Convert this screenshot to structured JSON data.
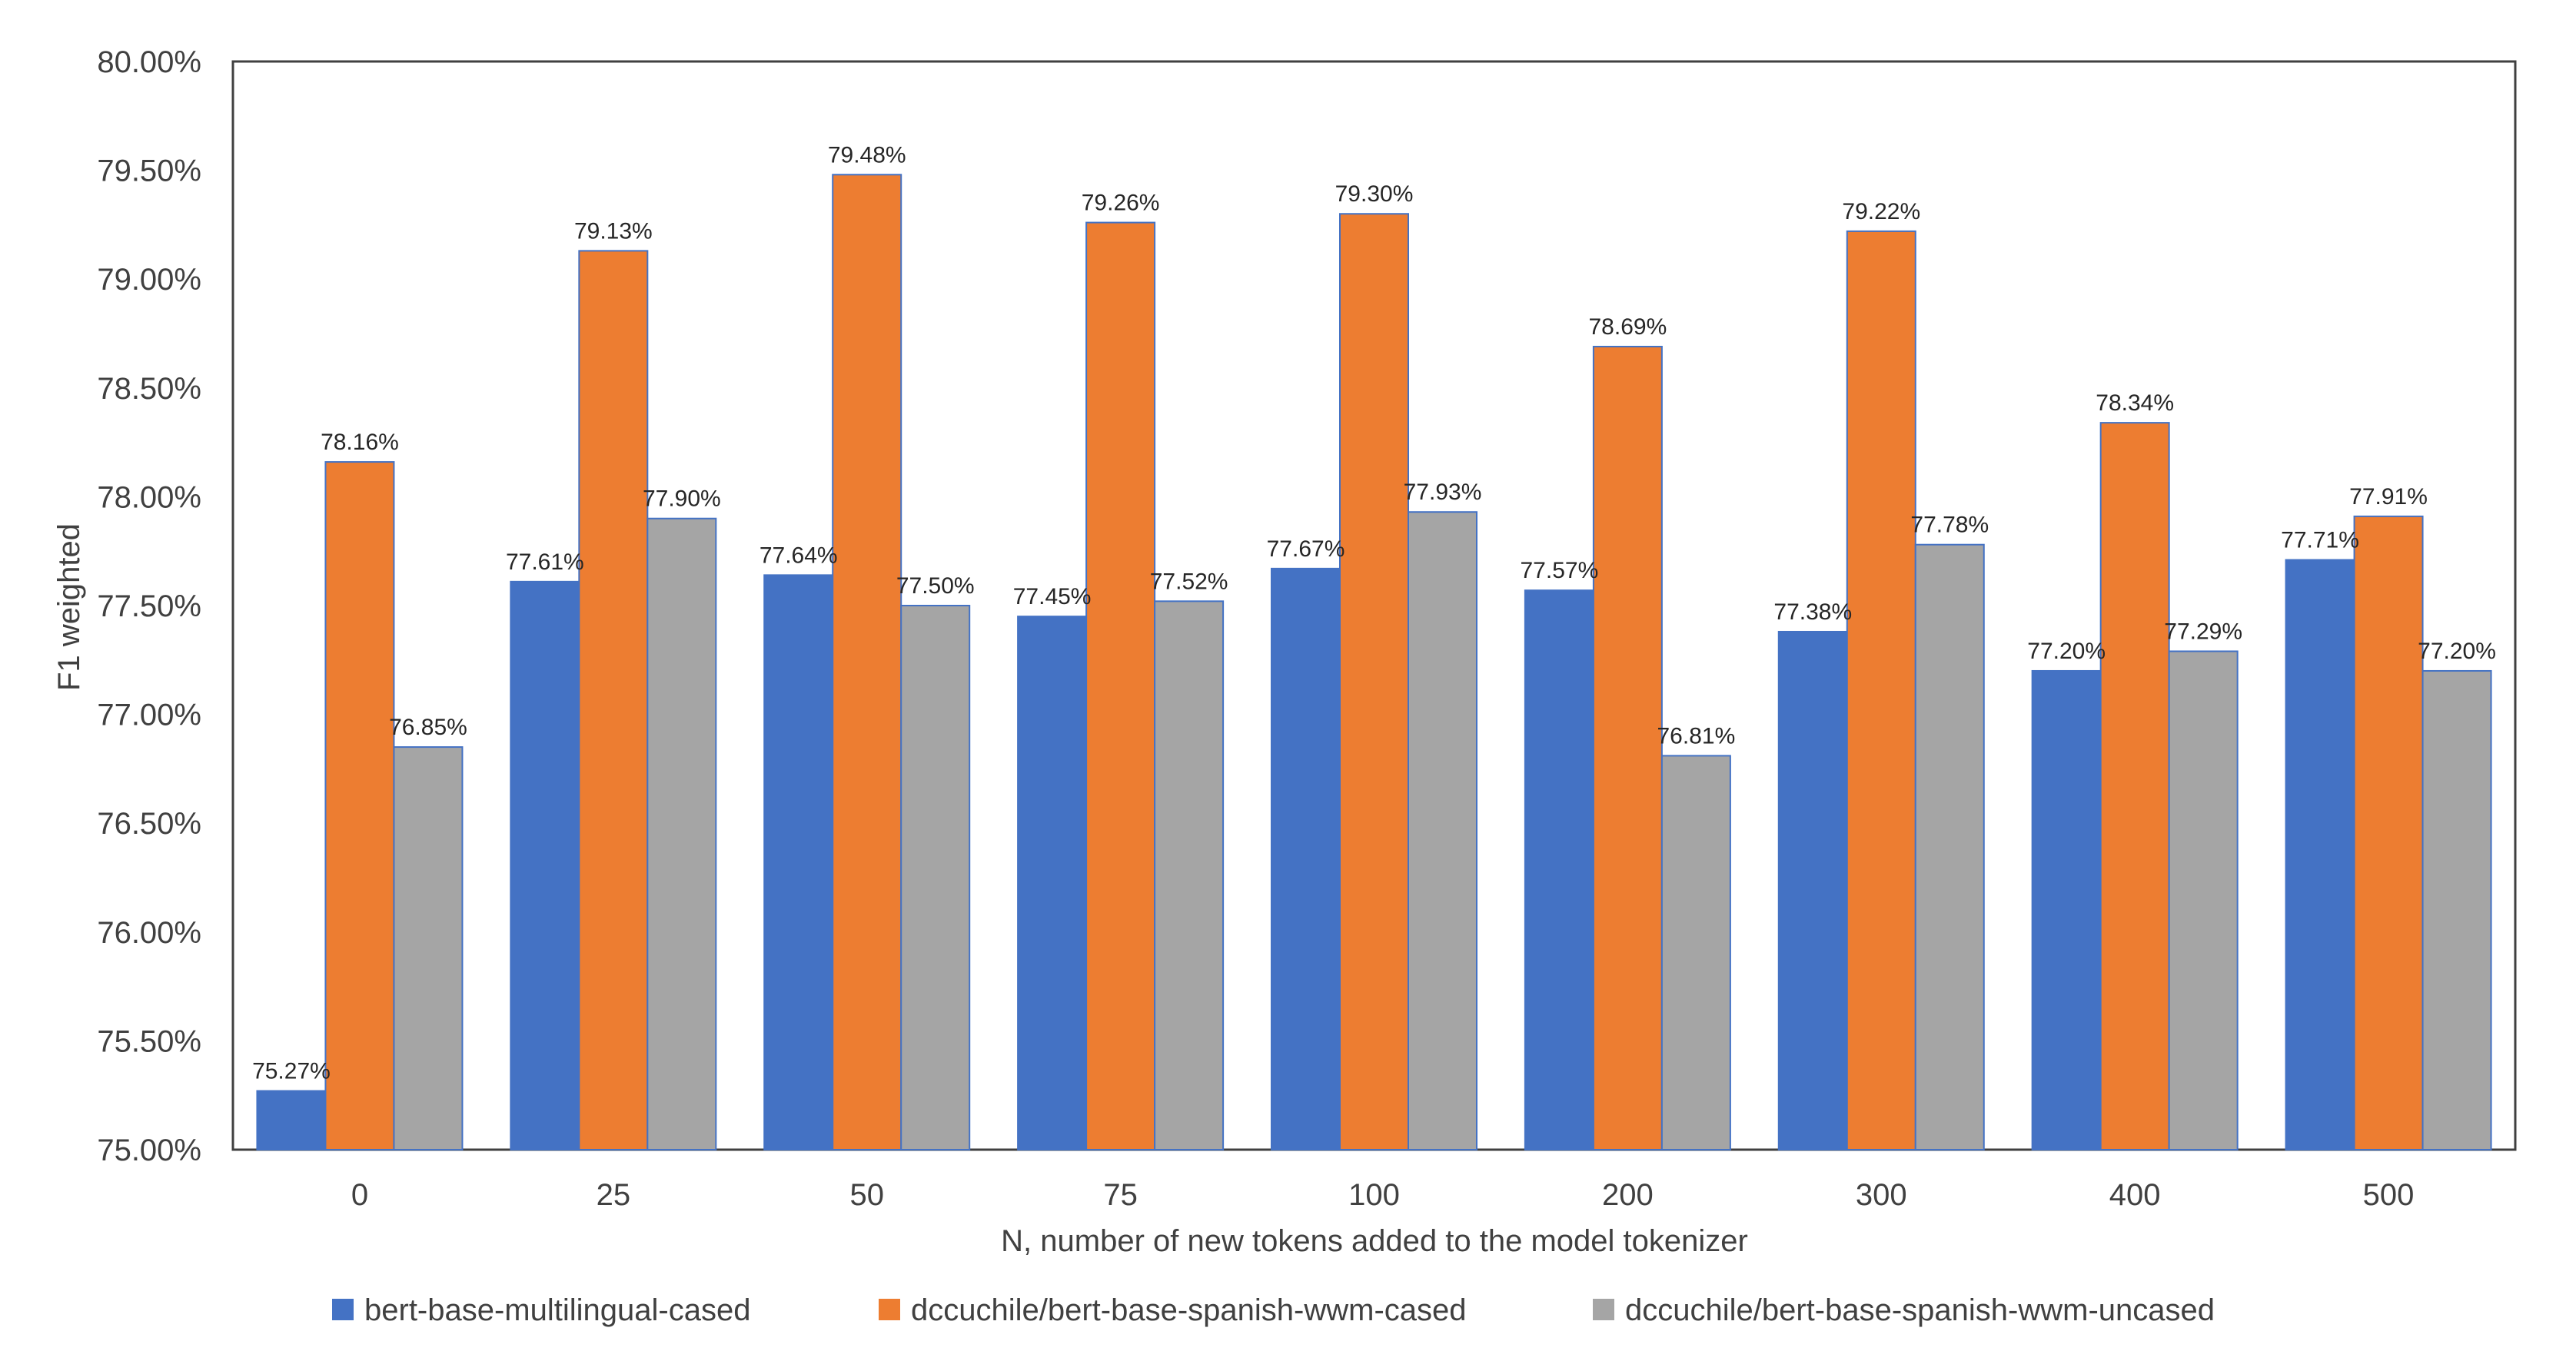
{
  "chart_data": {
    "type": "bar",
    "title": "",
    "xlabel": "N, number of new tokens added to the model tokenizer",
    "ylabel": "F1 weighted",
    "ylim": [
      75.0,
      80.0
    ],
    "ytick_step": 0.5,
    "categories": [
      "0",
      "25",
      "50",
      "75",
      "100",
      "200",
      "300",
      "400",
      "500"
    ],
    "series": [
      {
        "name": "bert-base-multilingual-cased",
        "color": "#4472C4",
        "values": [
          75.27,
          77.61,
          77.64,
          77.45,
          77.67,
          77.57,
          77.38,
          77.2,
          77.71
        ],
        "labels": [
          "75.27%",
          "77.61%",
          "77.64%",
          "77.45%",
          "77.67%",
          "77.57%",
          "77.38%",
          "77.20%",
          "77.71%"
        ]
      },
      {
        "name": "dccuchile/bert-base-spanish-wwm-cased",
        "color": "#ED7D31",
        "values": [
          78.16,
          79.13,
          79.48,
          79.26,
          79.3,
          78.69,
          79.22,
          78.34,
          77.91
        ],
        "labels": [
          "78.16%",
          "79.13%",
          "79.48%",
          "79.26%",
          "79.30%",
          "78.69%",
          "79.22%",
          "78.34%",
          "77.91%"
        ]
      },
      {
        "name": "dccuchile/bert-base-spanish-wwm-uncased",
        "color": "#A5A5A5",
        "values": [
          76.85,
          77.9,
          77.5,
          77.52,
          77.93,
          76.81,
          77.78,
          77.29,
          77.2
        ],
        "labels": [
          "76.85%",
          "77.90%",
          "77.50%",
          "77.52%",
          "77.93%",
          "76.81%",
          "77.78%",
          "77.29%",
          "77.20%"
        ]
      }
    ],
    "yticks": [
      "75.00%",
      "75.50%",
      "76.00%",
      "76.50%",
      "77.00%",
      "77.50%",
      "78.00%",
      "78.50%",
      "79.00%",
      "79.50%",
      "80.00%"
    ],
    "grid": false,
    "legend": "bottom-center"
  }
}
